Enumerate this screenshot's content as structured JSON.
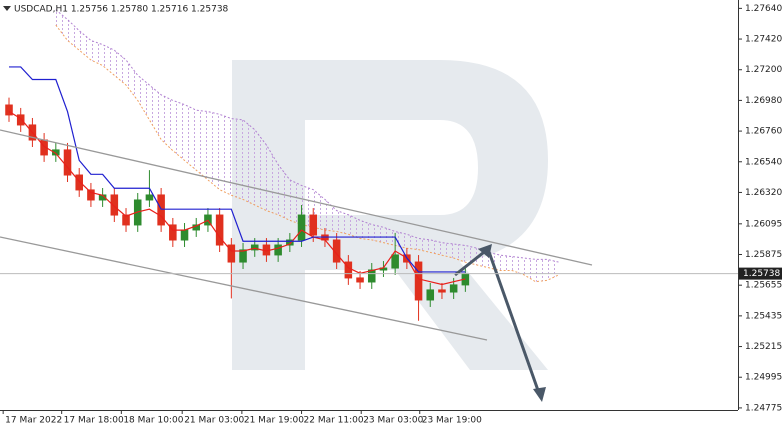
{
  "chart_data": {
    "type": "candlestick",
    "title": "USDCAD,H1  1.25756 1.25780 1.25716 1.25738",
    "last_price": 1.25738,
    "ylim": [
      1.2476,
      1.277
    ],
    "yticks": [
      {
        "value": 1.2764,
        "label": "1.27640"
      },
      {
        "value": 1.2742,
        "label": "1.27420"
      },
      {
        "value": 1.272,
        "label": "1.27200"
      },
      {
        "value": 1.2698,
        "label": "1.26980"
      },
      {
        "value": 1.2676,
        "label": "1.26760"
      },
      {
        "value": 1.2654,
        "label": "1.26540"
      },
      {
        "value": 1.2632,
        "label": "1.26320"
      },
      1.26095,
      1.25875,
      1.25655,
      1.25435,
      1.25215,
      1.24995,
      1.24775
    ],
    "xlim": [
      -0.77,
      62.3
    ],
    "xticks": [
      {
        "value": -0.5,
        "label": "17 Mar 2022"
      },
      {
        "value": 4.5,
        "label": "17 Mar 18:00"
      },
      {
        "value": 9.6,
        "label": "18 Mar 10:00"
      },
      {
        "value": 14.8,
        "label": "21 Mar 03:00"
      },
      {
        "value": 19.9,
        "label": "21 Mar 19:00"
      },
      {
        "value": 25,
        "label": "22 Mar 11:00"
      },
      {
        "value": 30.1,
        "label": "23 Mar 03:00"
      },
      {
        "value": 35.1,
        "label": "23 Mar 19:00"
      }
    ],
    "up_color": "#2e8b2e",
    "down_color": "#e0301e",
    "candles": {
      "open": [
        1.26947,
        1.26876,
        1.26804,
        1.26696,
        1.26589,
        1.26625,
        1.26445,
        1.26338,
        1.26266,
        1.26302,
        1.26158,
        1.26087,
        1.26266,
        1.26302,
        1.26087,
        1.25979,
        1.26051,
        1.26087,
        1.26158,
        1.25943,
        1.25821,
        1.25908,
        1.25943,
        1.25872,
        1.25943,
        1.25979,
        1.26158,
        1.26015,
        1.25979,
        1.25821,
        1.25707,
        1.25678,
        1.25764,
        1.25778,
        1.25872,
        1.25821,
        1.25549,
        1.25621,
        1.25606,
        1.25657
      ],
      "high": [
        1.27,
        1.26926,
        1.26854,
        1.26746,
        1.26675,
        1.26675,
        1.26495,
        1.26388,
        1.26352,
        1.26352,
        1.26208,
        1.26316,
        1.2648,
        1.26352,
        1.26137,
        1.26101,
        1.26137,
        1.26208,
        1.26208,
        1.25993,
        1.25958,
        1.25993,
        1.25993,
        1.25993,
        1.26029,
        1.2623,
        1.26208,
        1.26065,
        1.26029,
        1.25871,
        1.25757,
        1.25814,
        1.25828,
        1.2603,
        1.25922,
        1.25871,
        1.25671,
        1.25671,
        1.25707,
        1.25788
      ],
      "low": [
        1.26826,
        1.26754,
        1.26646,
        1.26539,
        1.26539,
        1.26395,
        1.26288,
        1.26216,
        1.26216,
        1.26108,
        1.26037,
        1.26037,
        1.26216,
        1.26037,
        1.25929,
        1.25929,
        1.26001,
        1.26037,
        1.25893,
        1.2556,
        1.25771,
        1.25858,
        1.25822,
        1.25822,
        1.25893,
        1.25929,
        1.25965,
        1.25929,
        1.25771,
        1.25657,
        1.25628,
        1.25628,
        1.25714,
        1.25728,
        1.25771,
        1.254,
        1.25499,
        1.25556,
        1.25556,
        1.25607
      ],
      "close": [
        1.26876,
        1.26804,
        1.26696,
        1.26589,
        1.26625,
        1.26445,
        1.26338,
        1.26266,
        1.26302,
        1.26158,
        1.26087,
        1.26266,
        1.26302,
        1.26087,
        1.25979,
        1.26051,
        1.26087,
        1.26158,
        1.25943,
        1.25821,
        1.25908,
        1.25943,
        1.25872,
        1.25943,
        1.25979,
        1.26158,
        1.26015,
        1.25979,
        1.25821,
        1.25707,
        1.25678,
        1.25764,
        1.25778,
        1.25872,
        1.25821,
        1.25549,
        1.25621,
        1.25606,
        1.25657,
        1.25738
      ]
    },
    "lines": [
      {
        "color": "#e8201a",
        "values": [
          1.269,
          1.2685,
          1.2675,
          1.2665,
          1.266,
          1.265,
          1.264,
          1.2632,
          1.263,
          1.2622,
          1.2615,
          1.2618,
          1.262,
          1.2615,
          1.2605,
          1.2605,
          1.2608,
          1.2612,
          1.26,
          1.259,
          1.259,
          1.2592,
          1.259,
          1.2592,
          1.2595,
          1.2605,
          1.26,
          1.2598,
          1.2588,
          1.2578,
          1.2574,
          1.2576,
          1.2578,
          1.259,
          1.2585,
          1.257,
          1.2568,
          1.2566,
          1.2568,
          1.257
        ]
      },
      {
        "color": "#2020d0",
        "values": [
          1.2722,
          1.2722,
          1.2713,
          1.2713,
          1.2713,
          1.269,
          1.2655,
          1.2645,
          1.2645,
          1.2635,
          1.2635,
          1.2635,
          1.2635,
          1.262,
          1.262,
          1.262,
          1.262,
          1.262,
          1.262,
          1.262,
          1.2597,
          1.2597,
          1.2597,
          1.2597,
          1.2597,
          1.2597,
          1.26,
          1.26,
          1.26,
          1.26,
          1.26,
          1.26,
          1.26,
          1.26,
          1.2585,
          1.2575,
          1.2575,
          1.2575,
          1.2575,
          1.2575
        ]
      }
    ],
    "cloud": {
      "upper_color": "#b080d0",
      "lower_color": "#f0a060",
      "upper": [
        null,
        null,
        null,
        null,
        1.2763,
        1.2756,
        1.2748,
        1.2741,
        1.2738,
        1.2734,
        1.2727,
        1.2716,
        1.2709,
        1.2702,
        1.2698,
        1.2695,
        1.2691,
        1.269,
        1.2688,
        1.2685,
        1.2684,
        1.2677,
        1.2666,
        1.2652,
        1.2641,
        1.2637,
        1.2634,
        1.2627,
        1.2619,
        1.2616,
        1.2612,
        1.2609,
        1.2607,
        1.2604,
        1.2602,
        1.2599,
        1.2598,
        1.2596,
        1.2595,
        1.2594,
        1.2592,
        1.2589,
        1.2587,
        1.2586,
        1.2585,
        1.2584,
        1.2584,
        1.2582
      ],
      "lower": [
        null,
        null,
        null,
        null,
        1.2752,
        1.2741,
        1.2734,
        1.2727,
        1.2723,
        1.2716,
        1.2709,
        1.2698,
        1.2684,
        1.267,
        1.2662,
        1.2655,
        1.2648,
        1.2641,
        1.2634,
        1.263,
        1.2627,
        1.2623,
        1.2619,
        1.2616,
        1.2612,
        1.2609,
        1.2607,
        1.2605,
        1.2604,
        1.2602,
        1.2599,
        1.2598,
        1.2596,
        1.2594,
        1.2592,
        1.2591,
        1.2589,
        1.2587,
        1.2585,
        1.2582,
        1.258,
        1.2578,
        1.2576,
        1.2576,
        1.2573,
        1.2568,
        1.2569,
        1.2573
      ]
    }
  }
}
